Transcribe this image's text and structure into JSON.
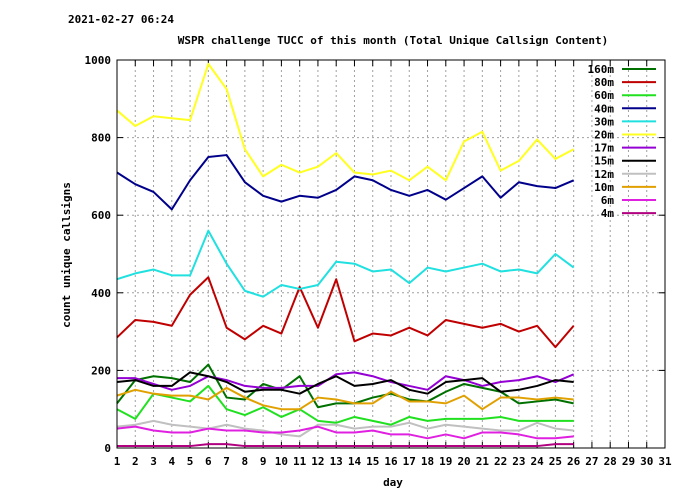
{
  "timestamp": "2021-02-27 06:24",
  "chart_data": {
    "type": "line",
    "title": "WSPR challenge TUCC of this month (Total Unique Callsign Content)",
    "xlabel": "day",
    "ylabel": "count unique callsigns",
    "xlim": [
      1,
      31
    ],
    "ylim": [
      0,
      1000
    ],
    "xticks": [
      1,
      2,
      3,
      4,
      5,
      6,
      7,
      8,
      9,
      10,
      11,
      12,
      13,
      14,
      15,
      16,
      17,
      18,
      19,
      20,
      21,
      22,
      23,
      24,
      25,
      26,
      27,
      28,
      29,
      30,
      31
    ],
    "yticks": [
      0,
      200,
      400,
      600,
      800,
      1000
    ],
    "grid": true,
    "legend": "top-right",
    "x": [
      1,
      2,
      3,
      4,
      5,
      6,
      7,
      8,
      9,
      10,
      11,
      12,
      13,
      14,
      15,
      16,
      17,
      18,
      19,
      20,
      21,
      22,
      23,
      24,
      25,
      26
    ],
    "series": [
      {
        "name": "160m",
        "color": "#007000",
        "values": [
          115,
          175,
          185,
          180,
          170,
          215,
          130,
          125,
          165,
          150,
          185,
          105,
          115,
          115,
          130,
          140,
          125,
          120,
          145,
          165,
          155,
          145,
          115,
          120,
          125,
          115
        ]
      },
      {
        "name": "80m",
        "color": "#c00000",
        "values": [
          285,
          330,
          325,
          315,
          395,
          440,
          310,
          280,
          315,
          295,
          415,
          310,
          435,
          275,
          295,
          290,
          310,
          290,
          330,
          320,
          310,
          320,
          300,
          315,
          260,
          315
        ]
      },
      {
        "name": "60m",
        "color": "#20e020",
        "values": [
          100,
          75,
          140,
          130,
          120,
          160,
          100,
          85,
          105,
          80,
          100,
          70,
          65,
          80,
          70,
          60,
          80,
          70,
          75,
          75,
          75,
          80,
          70,
          70,
          70,
          70
        ]
      },
      {
        "name": "40m",
        "color": "#00008b",
        "values": [
          710,
          680,
          660,
          615,
          690,
          750,
          755,
          685,
          650,
          635,
          650,
          645,
          665,
          700,
          690,
          665,
          650,
          665,
          640,
          670,
          700,
          645,
          685,
          675,
          670,
          690
        ]
      },
      {
        "name": "30m",
        "color": "#20e0e0",
        "values": [
          435,
          450,
          460,
          445,
          445,
          560,
          475,
          405,
          390,
          420,
          410,
          420,
          480,
          475,
          455,
          460,
          425,
          465,
          455,
          465,
          475,
          455,
          460,
          450,
          500,
          465
        ]
      },
      {
        "name": "20m",
        "color": "#ffff20",
        "values": [
          870,
          830,
          855,
          850,
          845,
          990,
          925,
          770,
          700,
          730,
          710,
          725,
          760,
          710,
          705,
          715,
          690,
          725,
          690,
          790,
          815,
          715,
          740,
          795,
          745,
          770
        ]
      },
      {
        "name": "17m",
        "color": "#9400d3",
        "values": [
          180,
          180,
          165,
          150,
          160,
          185,
          175,
          160,
          155,
          155,
          160,
          160,
          190,
          195,
          185,
          170,
          160,
          150,
          185,
          175,
          160,
          170,
          175,
          185,
          170,
          190
        ]
      },
      {
        "name": "15m",
        "color": "#000000",
        "values": [
          170,
          175,
          160,
          160,
          195,
          185,
          170,
          145,
          150,
          150,
          140,
          165,
          185,
          160,
          165,
          175,
          150,
          140,
          170,
          175,
          180,
          145,
          150,
          160,
          175,
          170
        ]
      },
      {
        "name": "12m",
        "color": "#c0c0c0",
        "values": [
          55,
          60,
          70,
          60,
          55,
          50,
          60,
          50,
          45,
          35,
          30,
          60,
          60,
          50,
          55,
          55,
          65,
          50,
          60,
          55,
          50,
          45,
          45,
          65,
          50,
          45
        ]
      },
      {
        "name": "10m",
        "color": "#e0a000",
        "values": [
          135,
          150,
          140,
          135,
          135,
          125,
          155,
          130,
          110,
          100,
          100,
          130,
          125,
          115,
          115,
          145,
          120,
          120,
          115,
          135,
          100,
          130,
          130,
          125,
          130,
          125
        ]
      },
      {
        "name": "6m",
        "color": "#e020e0",
        "values": [
          50,
          55,
          45,
          40,
          40,
          50,
          45,
          45,
          40,
          40,
          45,
          55,
          40,
          40,
          45,
          35,
          35,
          25,
          35,
          25,
          40,
          40,
          35,
          25,
          25,
          30
        ]
      },
      {
        "name": "4m",
        "color": "#b00080",
        "values": [
          5,
          5,
          5,
          5,
          5,
          10,
          10,
          5,
          5,
          5,
          5,
          5,
          5,
          5,
          5,
          5,
          5,
          5,
          5,
          5,
          5,
          5,
          5,
          5,
          10,
          10
        ]
      }
    ]
  }
}
